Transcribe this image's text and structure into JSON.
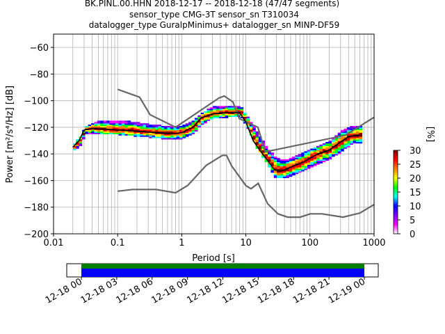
{
  "title_lines": [
    "BK.PINL.00.HHN   2018-12-17 -- 2018-12-18  (47/47 segments)",
    "sensor_type CMG-3T sensor_sn T310034",
    "datalogger_type GuralpMinimus+ datalogger_sn MINP-DF59"
  ],
  "chart_data": {
    "type": "heatmap",
    "xlabel": "Period [s]",
    "ylabel": "Power [m²/s⁴/Hz] [dB]",
    "x_scale": "log",
    "xlim": [
      0.01,
      1000
    ],
    "ylim": [
      -200,
      -50
    ],
    "x_ticks": [
      0.01,
      0.1,
      1,
      10,
      100,
      1000
    ],
    "x_tick_labels": [
      "0.01",
      "0.1",
      "1",
      "10",
      "100",
      "1000"
    ],
    "y_ticks": [
      -200,
      -180,
      -160,
      -140,
      -120,
      -100,
      -80,
      -60
    ],
    "grid": true,
    "colorbar": {
      "label": "[%]",
      "range": [
        0,
        30
      ],
      "ticks": [
        0,
        5,
        10,
        15,
        20,
        25,
        30
      ],
      "colors": [
        "#ffffff",
        "#ff00ff",
        "#8000ff",
        "#0000ff",
        "#00ffff",
        "#00ff00",
        "#ffff00",
        "#ff8000",
        "#ff0000",
        "#800000"
      ]
    },
    "series": [
      {
        "name": "NHNM",
        "color": "#666666",
        "points": [
          [
            0.1,
            -91.5
          ],
          [
            0.22,
            -97.4
          ],
          [
            0.32,
            -110.5
          ],
          [
            0.8,
            -120
          ],
          [
            3.8,
            -98
          ],
          [
            4.6,
            -96.5
          ],
          [
            6.3,
            -101
          ],
          [
            7.9,
            -113.5
          ],
          [
            15.4,
            -120
          ],
          [
            20,
            -138.5
          ],
          [
            354.8,
            -126
          ],
          [
            1000,
            -112.5
          ]
        ]
      },
      {
        "name": "NLNM",
        "color": "#666666",
        "points": [
          [
            0.1,
            -168
          ],
          [
            0.17,
            -166.7
          ],
          [
            0.4,
            -166.7
          ],
          [
            0.8,
            -169.2
          ],
          [
            1.24,
            -163.7
          ],
          [
            2.4,
            -148.6
          ],
          [
            4.3,
            -141.1
          ],
          [
            5,
            -141.1
          ],
          [
            6,
            -149
          ],
          [
            10,
            -163.8
          ],
          [
            12,
            -166.2
          ],
          [
            15.6,
            -162.1
          ],
          [
            21.9,
            -177.5
          ],
          [
            31.6,
            -185
          ],
          [
            45,
            -187.5
          ],
          [
            70,
            -187.5
          ],
          [
            101,
            -185
          ],
          [
            154,
            -185
          ],
          [
            328,
            -187.5
          ],
          [
            600,
            -184.4
          ],
          [
            1000,
            -178
          ]
        ]
      },
      {
        "name": "mode",
        "color": "#000000",
        "points": [
          [
            0.02,
            -135
          ],
          [
            0.025,
            -130
          ],
          [
            0.03,
            -122
          ],
          [
            0.04,
            -121
          ],
          [
            0.06,
            -121.5
          ],
          [
            0.1,
            -122
          ],
          [
            0.2,
            -123
          ],
          [
            0.4,
            -124
          ],
          [
            0.7,
            -125
          ],
          [
            1,
            -124
          ],
          [
            1.5,
            -120
          ],
          [
            2,
            -113
          ],
          [
            3,
            -110
          ],
          [
            5,
            -109
          ],
          [
            8,
            -109
          ],
          [
            10,
            -116
          ],
          [
            13,
            -130
          ],
          [
            17,
            -138
          ],
          [
            22,
            -145
          ],
          [
            28,
            -152
          ],
          [
            35,
            -153
          ],
          [
            50,
            -150
          ],
          [
            80,
            -146
          ],
          [
            120,
            -141
          ],
          [
            200,
            -137
          ],
          [
            300,
            -131
          ],
          [
            400,
            -127
          ],
          [
            600,
            -126
          ]
        ]
      }
    ],
    "psd_upper": [
      [
        0.02,
        -133
      ],
      [
        0.025,
        -128
      ],
      [
        0.03,
        -121
      ],
      [
        0.05,
        -116
      ],
      [
        0.1,
        -116
      ],
      [
        0.3,
        -119
      ],
      [
        0.7,
        -121
      ],
      [
        1,
        -120
      ],
      [
        1.5,
        -116
      ],
      [
        2,
        -110
      ],
      [
        3,
        -106
      ],
      [
        5,
        -105
      ],
      [
        8,
        -106
      ],
      [
        10,
        -113
      ],
      [
        14,
        -124
      ],
      [
        20,
        -136
      ],
      [
        28,
        -144
      ],
      [
        40,
        -146
      ],
      [
        70,
        -141
      ],
      [
        120,
        -136
      ],
      [
        200,
        -131
      ],
      [
        300,
        -124
      ],
      [
        450,
        -120
      ],
      [
        650,
        -120
      ]
    ],
    "psd_lower": [
      [
        0.02,
        -137
      ],
      [
        0.025,
        -133
      ],
      [
        0.03,
        -125
      ],
      [
        0.05,
        -124
      ],
      [
        0.1,
        -125
      ],
      [
        0.3,
        -127
      ],
      [
        0.7,
        -129
      ],
      [
        1,
        -128
      ],
      [
        1.5,
        -124
      ],
      [
        2,
        -117
      ],
      [
        3,
        -113
      ],
      [
        5,
        -112
      ],
      [
        8,
        -112
      ],
      [
        10,
        -120
      ],
      [
        14,
        -135
      ],
      [
        20,
        -146
      ],
      [
        28,
        -158
      ],
      [
        40,
        -158
      ],
      [
        70,
        -153
      ],
      [
        120,
        -148
      ],
      [
        200,
        -143
      ],
      [
        300,
        -138
      ],
      [
        450,
        -131
      ],
      [
        650,
        -132
      ]
    ]
  },
  "timeline": {
    "tick_labels": [
      "12-18 00",
      "12-18 03",
      "12-18 06",
      "12-18 09",
      "12-18 12",
      "12-18 15",
      "12-18 18",
      "12-18 21",
      "12-19 00"
    ],
    "coverage_color": "#0000ff",
    "data_color": "#008000"
  }
}
